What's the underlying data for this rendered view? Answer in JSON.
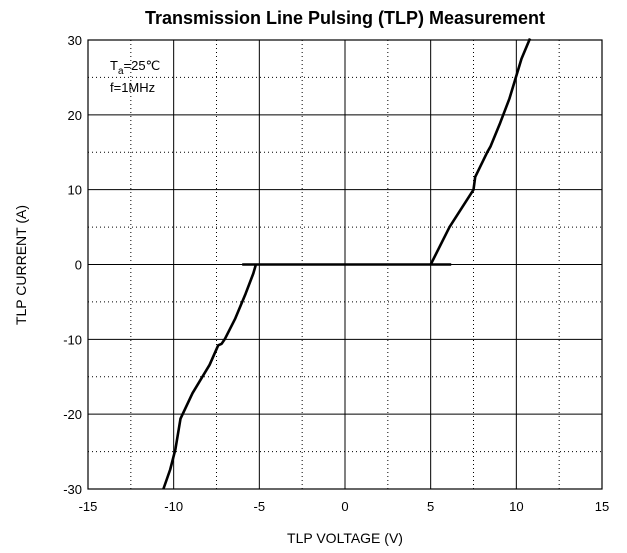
{
  "chart_data": {
    "type": "line",
    "title": "Transmission Line Pulsing (TLP) Measurement",
    "xlabel": "TLP VOLTAGE   (V)",
    "ylabel": "TLP CURRENT  (A)",
    "annotations": [
      {
        "main": "T",
        "sub": "a",
        "tail": "=25℃"
      },
      "f=1MHz"
    ],
    "xlim": [
      -15,
      15
    ],
    "ylim": [
      -30,
      30
    ],
    "xticks": [
      -15,
      -10,
      -5,
      0,
      5,
      10,
      15
    ],
    "yticks": [
      -30,
      -20,
      -10,
      0,
      10,
      20,
      30
    ],
    "xminorticks": [
      -12.5,
      -7.5,
      -2.5,
      2.5,
      7.5,
      12.5
    ],
    "yminorticks": [
      -25,
      -15,
      -5,
      5,
      15,
      25
    ],
    "grid": true,
    "series": [
      {
        "color": "#000000",
        "x": [
          -10.6,
          -10.2,
          -9.9,
          -9.6,
          -8.9,
          -7.9,
          -7.4,
          -7.2,
          -7.0,
          -6.4,
          -5.8,
          -5.35,
          -5.2,
          null,
          -6.0,
          6.2,
          null,
          5.0,
          6.1,
          7.5,
          7.6,
          8.3,
          8.5,
          9.05,
          9.6,
          10.3,
          10.8
        ],
        "values": [
          -30,
          -27.4,
          -24.7,
          -20.6,
          -17.2,
          -13.4,
          -10.8,
          -10.6,
          -9.9,
          -7.2,
          -3.9,
          -1.2,
          0,
          null,
          0,
          0,
          null,
          0,
          5,
          10,
          11.7,
          15,
          15.8,
          18.9,
          22.2,
          27.5,
          30.2
        ]
      }
    ]
  }
}
